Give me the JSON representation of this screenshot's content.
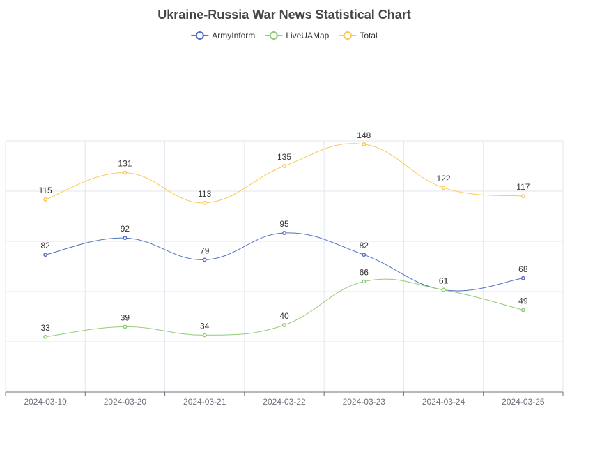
{
  "chart_data": {
    "type": "line",
    "title": "Ukraine-Russia War News Statistical Chart",
    "categories": [
      "2024-03-19",
      "2024-03-20",
      "2024-03-21",
      "2024-03-22",
      "2024-03-23",
      "2024-03-24",
      "2024-03-25"
    ],
    "series": [
      {
        "name": "ArmyInform",
        "color": "#5470c6",
        "values": [
          82,
          92,
          79,
          95,
          82,
          61,
          68
        ]
      },
      {
        "name": "LiveUAMap",
        "color": "#91cc75",
        "values": [
          33,
          39,
          34,
          40,
          66,
          61,
          49
        ]
      },
      {
        "name": "Total",
        "color": "#fac858",
        "values": [
          115,
          131,
          113,
          135,
          148,
          122,
          117
        ]
      }
    ],
    "ylim": [
      0,
      150
    ],
    "smooth": true,
    "grid": true,
    "y_axis_labels_shown": false,
    "legend_position": "top-center",
    "data_labels": true
  }
}
